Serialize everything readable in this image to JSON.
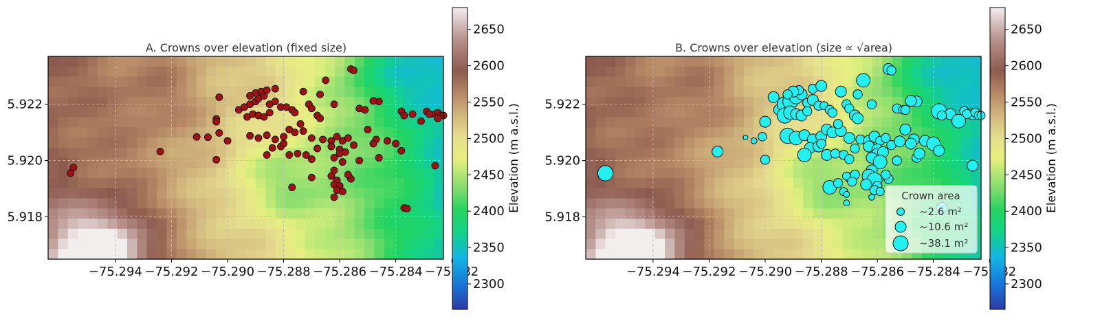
{
  "colormap": [
    "#2c3aa6",
    "#1874d8",
    "#11b5e6",
    "#14d382",
    "#25d45e",
    "#7fdc6c",
    "#e6f07f",
    "#e5dd8e",
    "#d2b87e",
    "#b48564",
    "#8d5b4e",
    "#b9958f",
    "#f2eeee"
  ],
  "scatter_colors": {
    "panel_a": "#a01212",
    "panel_b": "#22f1f1",
    "edge": "#111111"
  },
  "chart_data": [
    {
      "type": "scatter",
      "title": "A. Crowns over elevation (fixed size)",
      "xlim": [
        -75.2964,
        -75.2823
      ],
      "ylim": [
        5.9165,
        5.9237
      ],
      "xticks": [
        "−75.294",
        "−75.292",
        "−75.290",
        "−75.288",
        "−75.286",
        "−75.284",
        "−75.282"
      ],
      "xtick_values": [
        -75.294,
        -75.292,
        -75.29,
        -75.288,
        -75.286,
        -75.284,
        -75.282
      ],
      "yticks": [
        "5.918",
        "5.920",
        "5.922"
      ],
      "ytick_values": [
        5.918,
        5.92,
        5.922
      ],
      "grid": true,
      "background": "elevation raster (m a.s.l.)",
      "colorbar": {
        "label": "Elevation (m a.s.l.)",
        "min": 2265,
        "max": 2680,
        "ticks": [
          "2300",
          "2350",
          "2400",
          "2450",
          "2500",
          "2550",
          "2600",
          "2650"
        ],
        "tick_values": [
          2300,
          2350,
          2400,
          2450,
          2500,
          2550,
          2600,
          2650
        ]
      },
      "points": [
        [
          -75.2955,
          5.91975
        ],
        [
          -75.2956,
          5.91955
        ],
        [
          -75.2924,
          5.92032
        ],
        [
          -75.2911,
          5.92084
        ],
        [
          -75.2904,
          5.92148
        ],
        [
          -75.2904,
          5.92138
        ],
        [
          -75.2903,
          5.92098
        ],
        [
          -75.2904,
          5.92003
        ],
        [
          -75.2907,
          5.92083
        ],
        [
          -75.29,
          5.9207
        ],
        [
          -75.2903,
          5.92225
        ],
        [
          -75.2896,
          5.9218
        ],
        [
          -75.2894,
          5.9219
        ],
        [
          -75.2892,
          5.922
        ],
        [
          -75.289,
          5.9221
        ],
        [
          -75.2889,
          5.9222
        ],
        [
          -75.2887,
          5.9223
        ],
        [
          -75.2885,
          5.922
        ],
        [
          -75.2883,
          5.9221
        ],
        [
          -75.2881,
          5.9219
        ],
        [
          -75.2893,
          5.92155
        ],
        [
          -75.2891,
          5.92165
        ],
        [
          -75.2889,
          5.9216
        ],
        [
          -75.2887,
          5.92155
        ],
        [
          -75.2885,
          5.9217
        ],
        [
          -75.2888,
          5.92245
        ],
        [
          -75.289,
          5.9224
        ],
        [
          -75.2892,
          5.9223
        ],
        [
          -75.2883,
          5.92255
        ],
        [
          -75.2886,
          5.9225
        ],
        [
          -75.2879,
          5.9219
        ],
        [
          -75.2877,
          5.9218
        ],
        [
          -75.2876,
          5.9217
        ],
        [
          -75.2892,
          5.92088
        ],
        [
          -75.2889,
          5.9208
        ],
        [
          -75.2886,
          5.9209
        ],
        [
          -75.2883,
          5.92075
        ],
        [
          -75.288,
          5.92085
        ],
        [
          -75.2878,
          5.9211
        ],
        [
          -75.2876,
          5.921
        ],
        [
          -75.2884,
          5.92045
        ],
        [
          -75.2881,
          5.9205
        ],
        [
          -75.2878,
          5.9202
        ],
        [
          -75.2875,
          5.92025
        ],
        [
          -75.2872,
          5.9202
        ],
        [
          -75.287,
          5.92005
        ],
        [
          -75.2886,
          5.9202
        ],
        [
          -75.2873,
          5.92105
        ],
        [
          -75.287,
          5.9208
        ],
        [
          -75.2873,
          5.92245
        ],
        [
          -75.2871,
          5.922
        ],
        [
          -75.2867,
          5.92235
        ],
        [
          -75.2865,
          5.92285
        ],
        [
          -75.287,
          5.92185
        ],
        [
          -75.2868,
          5.9216
        ],
        [
          -75.2862,
          5.922
        ],
        [
          -75.2866,
          5.92075
        ],
        [
          -75.2863,
          5.9207
        ],
        [
          -75.2861,
          5.92085
        ],
        [
          -75.2859,
          5.9207
        ],
        [
          -75.2863,
          5.9205
        ],
        [
          -75.286,
          5.9204
        ],
        [
          -75.2857,
          5.9208
        ],
        [
          -75.2855,
          5.92055
        ],
        [
          -75.286,
          5.92025
        ],
        [
          -75.2858,
          5.9203
        ],
        [
          -75.2862,
          5.9201
        ],
        [
          -75.2859,
          5.91995
        ],
        [
          -75.2862,
          5.91965
        ],
        [
          -75.2863,
          5.91945
        ],
        [
          -75.2861,
          5.9193
        ],
        [
          -75.2862,
          5.91915
        ],
        [
          -75.286,
          5.9191
        ],
        [
          -75.2861,
          5.91895
        ],
        [
          -75.2856,
          5.91935
        ],
        [
          -75.2859,
          5.9189
        ],
        [
          -75.2862,
          5.9187
        ],
        [
          -75.2857,
          5.9195
        ],
        [
          -75.287,
          5.9194
        ],
        [
          -75.2877,
          5.91905
        ],
        [
          -75.2856,
          5.92325
        ],
        [
          -75.2855,
          5.9232
        ],
        [
          -75.2853,
          5.92185
        ],
        [
          -75.2851,
          5.9218
        ],
        [
          -75.2846,
          5.9221
        ],
        [
          -75.2848,
          5.92212
        ],
        [
          -75.285,
          5.9211
        ],
        [
          -75.2847,
          5.92075
        ],
        [
          -75.2843,
          5.9207
        ],
        [
          -75.2846,
          5.9201
        ],
        [
          -75.284,
          5.9206
        ],
        [
          -75.2838,
          5.92035
        ],
        [
          -75.2838,
          5.92175
        ],
        [
          -75.2834,
          5.92165
        ],
        [
          -75.2837,
          5.9216
        ],
        [
          -75.2826,
          5.92165
        ],
        [
          -75.2829,
          5.92175
        ],
        [
          -75.2828,
          5.92165
        ],
        [
          -75.2825,
          5.9217
        ],
        [
          -75.2824,
          5.9216
        ],
        [
          -75.2823,
          5.9216
        ],
        [
          -75.2831,
          5.9214
        ],
        [
          -75.2825,
          5.9215
        ],
        [
          -75.2826,
          5.91982
        ],
        [
          -75.2837,
          5.91832
        ],
        [
          -75.2836,
          5.9183
        ],
        [
          -75.2853,
          5.92
        ],
        [
          -75.2848,
          5.9206
        ],
        [
          -75.288,
          5.9206
        ],
        [
          -75.2868,
          5.92043
        ],
        [
          -75.2867,
          5.9215
        ],
        [
          -75.2874,
          5.9213
        ]
      ]
    },
    {
      "type": "scatter",
      "title": "B. Crowns over elevation (size ∝ √area)",
      "xlim": [
        -75.2964,
        -75.2823
      ],
      "ylim": [
        5.9165,
        5.9237
      ],
      "xticks": [
        "−75.294",
        "−75.292",
        "−75.290",
        "−75.288",
        "−75.286",
        "−75.284",
        "−75.282"
      ],
      "xtick_values": [
        -75.294,
        -75.292,
        -75.29,
        -75.288,
        -75.286,
        -75.284,
        -75.282
      ],
      "yticks": [
        "5.918",
        "5.920",
        "5.922"
      ],
      "ytick_values": [
        5.918,
        5.92,
        5.922
      ],
      "grid": true,
      "background": "elevation raster (m a.s.l.)",
      "legend": {
        "title": "Crown area",
        "placement": "lower right",
        "entries": [
          {
            "label": "~2.6 m²",
            "area": 2.6
          },
          {
            "label": "~10.6 m²",
            "area": 10.6
          },
          {
            "label": "~38.1 m²",
            "area": 38.1
          }
        ]
      },
      "colorbar": {
        "label": "Elevation (m a.s.l.)",
        "min": 2265,
        "max": 2680,
        "ticks": [
          "2300",
          "2350",
          "2400",
          "2450",
          "2500",
          "2550",
          "2600",
          "2650"
        ],
        "tick_values": [
          2300,
          2350,
          2400,
          2450,
          2500,
          2550,
          2600,
          2650
        ]
      },
      "points": [
        [
          -75.2957,
          5.91955,
          38.1
        ],
        [
          -75.2917,
          5.92032,
          20.0
        ],
        [
          -75.2907,
          5.92082,
          2.6
        ],
        [
          -75.2901,
          5.92085,
          12.0
        ],
        [
          -75.29,
          5.92138,
          20.0
        ],
        [
          -75.29,
          5.92003,
          14.0
        ],
        [
          -75.2904,
          5.9207,
          6.0
        ],
        [
          -75.2897,
          5.92225,
          20.0
        ],
        [
          -75.2895,
          5.9218,
          20.0
        ],
        [
          -75.2893,
          5.922,
          38.1
        ],
        [
          -75.2891,
          5.9221,
          38.1
        ],
        [
          -75.2889,
          5.92225,
          30.0
        ],
        [
          -75.2887,
          5.92235,
          20.0
        ],
        [
          -75.2885,
          5.92205,
          14.0
        ],
        [
          -75.2883,
          5.92215,
          20.0
        ],
        [
          -75.2881,
          5.92195,
          14.0
        ],
        [
          -75.2893,
          5.9216,
          38.1
        ],
        [
          -75.2891,
          5.9217,
          30.0
        ],
        [
          -75.2889,
          5.92165,
          20.0
        ],
        [
          -75.2887,
          5.9216,
          20.0
        ],
        [
          -75.2885,
          5.92175,
          14.0
        ],
        [
          -75.2888,
          5.9225,
          14.0
        ],
        [
          -75.289,
          5.92245,
          20.0
        ],
        [
          -75.2892,
          5.92235,
          14.0
        ],
        [
          -75.2883,
          5.92255,
          14.0
        ],
        [
          -75.288,
          5.92265,
          20.0
        ],
        [
          -75.2879,
          5.92195,
          10.6
        ],
        [
          -75.2877,
          5.9218,
          14.0
        ],
        [
          -75.2876,
          5.9217,
          14.0
        ],
        [
          -75.2892,
          5.92088,
          38.1
        ],
        [
          -75.2889,
          5.9208,
          30.0
        ],
        [
          -75.2886,
          5.9209,
          20.0
        ],
        [
          -75.2883,
          5.92075,
          20.0
        ],
        [
          -75.288,
          5.92085,
          20.0
        ],
        [
          -75.2878,
          5.9211,
          20.0
        ],
        [
          -75.2876,
          5.921,
          20.0
        ],
        [
          -75.2884,
          5.92045,
          20.0
        ],
        [
          -75.2881,
          5.9205,
          20.0
        ],
        [
          -75.2878,
          5.9202,
          20.0
        ],
        [
          -75.2875,
          5.92025,
          14.0
        ],
        [
          -75.2872,
          5.9202,
          14.0
        ],
        [
          -75.287,
          5.92005,
          14.0
        ],
        [
          -75.2886,
          5.9202,
          30.0
        ],
        [
          -75.2873,
          5.92105,
          20.0
        ],
        [
          -75.287,
          5.9208,
          20.0
        ],
        [
          -75.2873,
          5.92245,
          20.0
        ],
        [
          -75.2871,
          5.922,
          14.0
        ],
        [
          -75.2867,
          5.92235,
          14.0
        ],
        [
          -75.2865,
          5.92285,
          30.0
        ],
        [
          -75.287,
          5.92185,
          14.0
        ],
        [
          -75.2868,
          5.9216,
          20.0
        ],
        [
          -75.2862,
          5.922,
          14.0
        ],
        [
          -75.2866,
          5.92075,
          14.0
        ],
        [
          -75.2863,
          5.9207,
          20.0
        ],
        [
          -75.2861,
          5.92085,
          20.0
        ],
        [
          -75.2859,
          5.9207,
          14.0
        ],
        [
          -75.2863,
          5.9205,
          20.0
        ],
        [
          -75.286,
          5.9204,
          20.0
        ],
        [
          -75.2857,
          5.9208,
          14.0
        ],
        [
          -75.2855,
          5.92055,
          14.0
        ],
        [
          -75.286,
          5.92025,
          20.0
        ],
        [
          -75.2858,
          5.9203,
          20.0
        ],
        [
          -75.2862,
          5.9201,
          20.0
        ],
        [
          -75.2859,
          5.91995,
          30.0
        ],
        [
          -75.2862,
          5.91965,
          20.0
        ],
        [
          -75.2863,
          5.91945,
          30.0
        ],
        [
          -75.2861,
          5.9193,
          38.1
        ],
        [
          -75.2864,
          5.91915,
          20.0
        ],
        [
          -75.286,
          5.9191,
          14.0
        ],
        [
          -75.2861,
          5.91895,
          14.0
        ],
        [
          -75.2856,
          5.91935,
          14.0
        ],
        [
          -75.2859,
          5.9189,
          10.6
        ],
        [
          -75.2862,
          5.9187,
          6.0
        ],
        [
          -75.2857,
          5.9195,
          14.0
        ],
        [
          -75.287,
          5.9194,
          14.0
        ],
        [
          -75.2877,
          5.91905,
          30.0
        ],
        [
          -75.2856,
          5.92325,
          20.0
        ],
        [
          -75.2855,
          5.9232,
          14.0
        ],
        [
          -75.2853,
          5.92185,
          14.0
        ],
        [
          -75.2851,
          5.9218,
          10.6
        ],
        [
          -75.2846,
          5.9221,
          20.0
        ],
        [
          -75.2848,
          5.92212,
          20.0
        ],
        [
          -75.285,
          5.9211,
          20.0
        ],
        [
          -75.2847,
          5.92075,
          20.0
        ],
        [
          -75.2843,
          5.9207,
          20.0
        ],
        [
          -75.2846,
          5.9201,
          14.0
        ],
        [
          -75.284,
          5.9206,
          30.0
        ],
        [
          -75.2838,
          5.92035,
          20.0
        ],
        [
          -75.2838,
          5.92175,
          38.1
        ],
        [
          -75.2834,
          5.92165,
          20.0
        ],
        [
          -75.2837,
          5.9216,
          14.0
        ],
        [
          -75.2826,
          5.92165,
          20.0
        ],
        [
          -75.2829,
          5.92175,
          14.0
        ],
        [
          -75.2828,
          5.92165,
          14.0
        ],
        [
          -75.2825,
          5.9217,
          14.0
        ],
        [
          -75.2824,
          5.9216,
          10.6
        ],
        [
          -75.2823,
          5.9216,
          10.6
        ],
        [
          -75.2831,
          5.9214,
          30.0
        ],
        [
          -75.2826,
          5.91982,
          20.0
        ],
        [
          -75.2837,
          5.91832,
          20.0
        ],
        [
          -75.2853,
          5.92,
          14.0
        ],
        [
          -75.2848,
          5.9206,
          20.0
        ],
        [
          -75.288,
          5.9206,
          14.0
        ],
        [
          -75.2868,
          5.92043,
          14.0
        ],
        [
          -75.2867,
          5.9215,
          20.0
        ],
        [
          -75.2874,
          5.9213,
          14.0
        ],
        [
          -75.2868,
          5.9195,
          14.0
        ],
        [
          -75.2871,
          5.91945,
          10.6
        ],
        [
          -75.2869,
          5.91925,
          14.0
        ],
        [
          -75.2872,
          5.9189,
          10.6
        ],
        [
          -75.2871,
          5.9188,
          6.0
        ],
        [
          -75.2871,
          5.9185,
          6.0
        ],
        [
          -75.2874,
          5.9192,
          14.0
        ],
        [
          -75.285,
          5.9218,
          14.0
        ],
        [
          -75.2845,
          5.92025,
          20.0
        ],
        [
          -75.2852,
          5.92068,
          20.0
        ]
      ]
    }
  ]
}
